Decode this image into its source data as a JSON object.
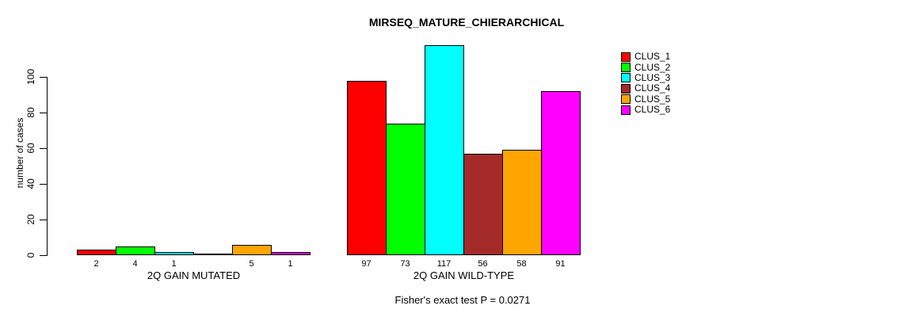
{
  "chart_data": {
    "type": "bar",
    "title": "MIRSEQ_MATURE_CHIERARCHICAL",
    "ylabel": "number of cases",
    "ylim": [
      0,
      117
    ],
    "yticks": [
      0,
      20,
      40,
      60,
      80,
      100
    ],
    "grid": false,
    "legend_position": "right",
    "clusters": [
      {
        "label": "CLUS_1",
        "color": "#FF0000"
      },
      {
        "label": "CLUS_2",
        "color": "#00FF00"
      },
      {
        "label": "CLUS_3",
        "color": "#00FFFF"
      },
      {
        "label": "CLUS_4",
        "color": "#A52A2A"
      },
      {
        "label": "CLUS_5",
        "color": "#FFA500"
      },
      {
        "label": "CLUS_6",
        "color": "#FF00FF"
      }
    ],
    "groups": [
      {
        "label": "2Q GAIN MUTATED",
        "values": [
          2,
          4,
          1,
          0,
          5,
          1
        ],
        "value_labels": [
          "2",
          "4",
          "1",
          "",
          "5",
          "1"
        ]
      },
      {
        "label": "2Q GAIN WILD-TYPE",
        "values": [
          97,
          73,
          117,
          56,
          58,
          91
        ],
        "value_labels": [
          "97",
          "73",
          "117",
          "56",
          "58",
          "91"
        ]
      }
    ],
    "annotation": "Fisher's exact test P = 0.0271"
  }
}
